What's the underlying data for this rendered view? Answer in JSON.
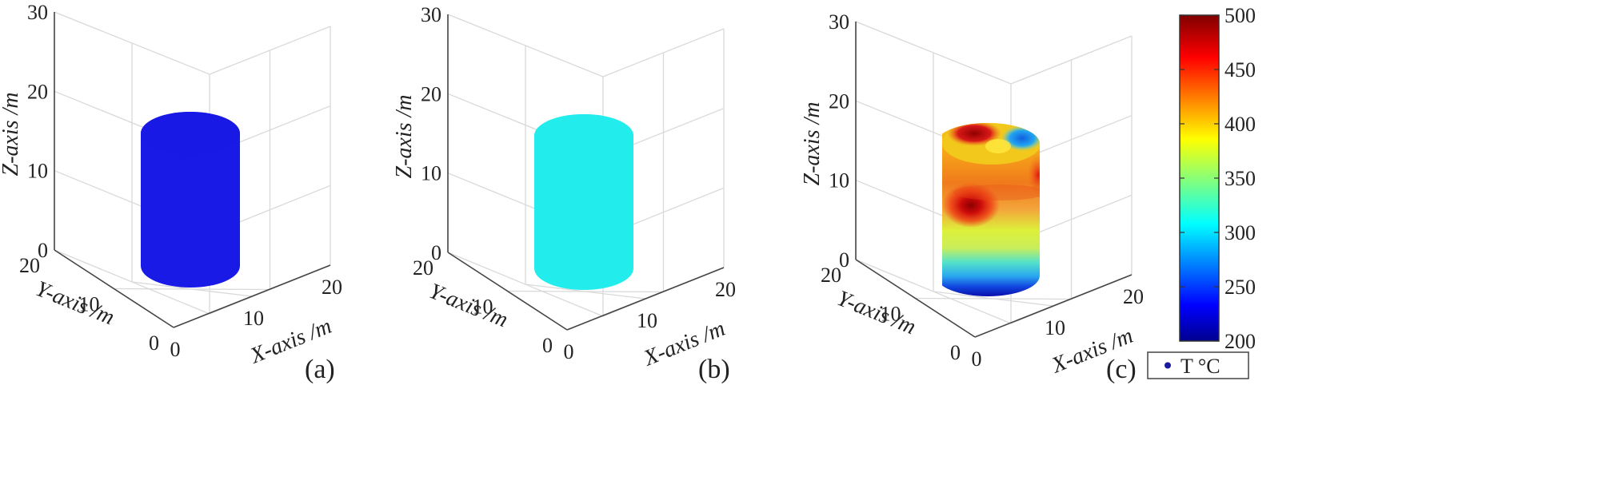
{
  "chart_data": {
    "type": "scatter3d",
    "colormap": "jet",
    "colorbar": {
      "min": 200,
      "max": 500,
      "ticks": [
        "500",
        "450",
        "400",
        "350",
        "300",
        "250",
        "200"
      ],
      "legend_label": "T °C"
    },
    "panels": [
      {
        "label": "(a)",
        "z_ticks": [
          "30",
          "20",
          "10",
          "0"
        ],
        "y_ticks": [
          "20",
          "10",
          "0"
        ],
        "x_ticks": [
          "0",
          "10",
          "20"
        ],
        "xlabel": "X-axis /m",
        "ylabel": "Y-axis /m",
        "zlabel": "Z-axis /m",
        "fill": "uniform",
        "color": "#1a1ae6",
        "temperature": 205
      },
      {
        "label": "(b)",
        "z_ticks": [
          "30",
          "20",
          "10",
          "0"
        ],
        "y_ticks": [
          "20",
          "10",
          "0"
        ],
        "x_ticks": [
          "0",
          "10",
          "20"
        ],
        "xlabel": "X-axis /m",
        "ylabel": "Y-axis /m",
        "zlabel": "Z-axis /m",
        "fill": "uniform",
        "color": "#22ecec",
        "temperature": 310
      },
      {
        "label": "(c)",
        "z_ticks": [
          "30",
          "20",
          "10",
          "0"
        ],
        "y_ticks": [
          "20",
          "10",
          "0"
        ],
        "x_ticks": [
          "0",
          "10",
          "20"
        ],
        "xlabel": "X-axis /m",
        "ylabel": "Y-axis /m",
        "zlabel": "Z-axis /m",
        "fill": "field",
        "temperature_range": [
          200,
          500
        ]
      }
    ]
  }
}
